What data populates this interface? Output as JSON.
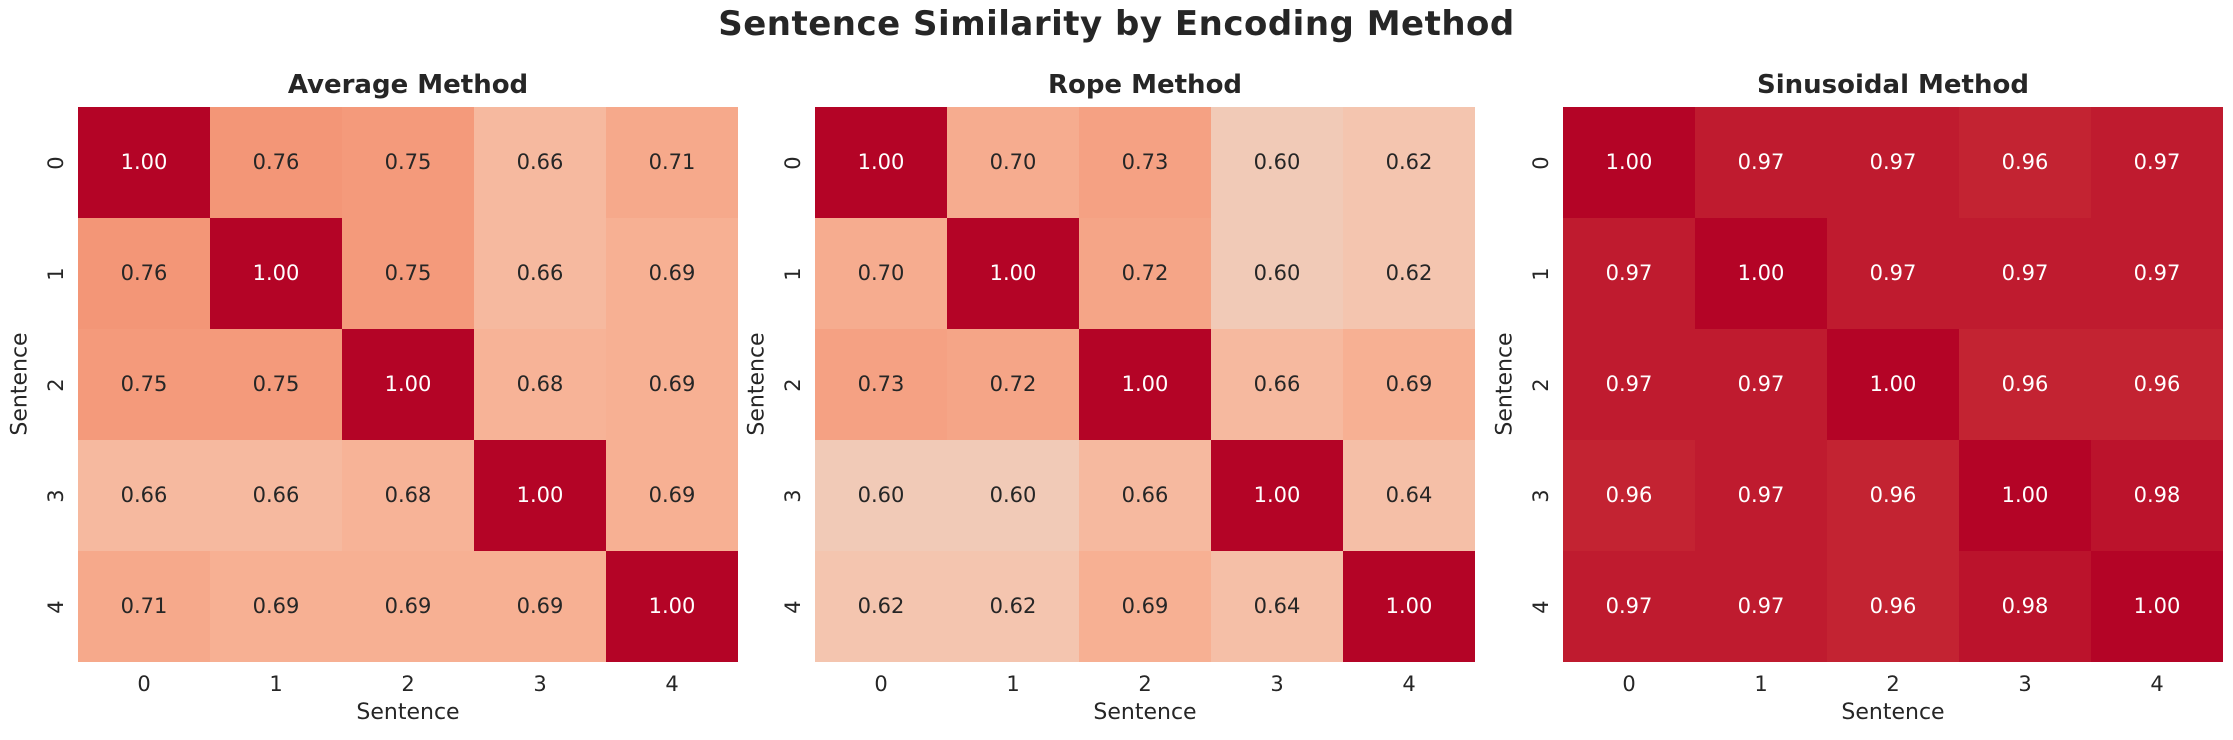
{
  "figure": {
    "title": "Sentence Similarity by Encoding Method",
    "background": "#ffffff",
    "text_color": "#262626"
  },
  "chart_data": [
    {
      "type": "heatmap",
      "title": "Average Method",
      "xlabel": "Sentence",
      "ylabel": "Sentence",
      "x_tick_labels": [
        "0",
        "1",
        "2",
        "3",
        "4"
      ],
      "y_tick_labels": [
        "0",
        "1",
        "2",
        "3",
        "4"
      ],
      "colormap": "coolwarm",
      "vmin": 0,
      "vmax": 1,
      "annot_format": "2-decimals",
      "values": [
        [
          1.0,
          0.76,
          0.75,
          0.66,
          0.71
        ],
        [
          0.76,
          1.0,
          0.75,
          0.66,
          0.69
        ],
        [
          0.75,
          0.75,
          1.0,
          0.68,
          0.69
        ],
        [
          0.66,
          0.66,
          0.68,
          1.0,
          0.69
        ],
        [
          0.71,
          0.69,
          0.69,
          0.69,
          1.0
        ]
      ]
    },
    {
      "type": "heatmap",
      "title": "Rope Method",
      "xlabel": "Sentence",
      "ylabel": "Sentence",
      "x_tick_labels": [
        "0",
        "1",
        "2",
        "3",
        "4"
      ],
      "y_tick_labels": [
        "0",
        "1",
        "2",
        "3",
        "4"
      ],
      "colormap": "coolwarm",
      "vmin": 0,
      "vmax": 1,
      "annot_format": "2-decimals",
      "values": [
        [
          1.0,
          0.7,
          0.73,
          0.6,
          0.62
        ],
        [
          0.7,
          1.0,
          0.72,
          0.6,
          0.62
        ],
        [
          0.73,
          0.72,
          1.0,
          0.66,
          0.69
        ],
        [
          0.6,
          0.6,
          0.66,
          1.0,
          0.64
        ],
        [
          0.62,
          0.62,
          0.69,
          0.64,
          1.0
        ]
      ]
    },
    {
      "type": "heatmap",
      "title": "Sinusoidal Method",
      "xlabel": "Sentence",
      "ylabel": "Sentence",
      "x_tick_labels": [
        "0",
        "1",
        "2",
        "3",
        "4"
      ],
      "y_tick_labels": [
        "0",
        "1",
        "2",
        "3",
        "4"
      ],
      "colormap": "coolwarm",
      "vmin": 0,
      "vmax": 1,
      "annot_format": "2-decimals",
      "values": [
        [
          1.0,
          0.97,
          0.97,
          0.96,
          0.97
        ],
        [
          0.97,
          1.0,
          0.97,
          0.97,
          0.97
        ],
        [
          0.97,
          0.97,
          1.0,
          0.96,
          0.96
        ],
        [
          0.96,
          0.97,
          0.96,
          1.0,
          0.98
        ],
        [
          0.97,
          0.97,
          0.96,
          0.98,
          1.0
        ]
      ]
    }
  ],
  "colormap_stops": [
    {
      "t": 0.5,
      "rgb": [
        221,
        221,
        219
      ]
    },
    {
      "t": 0.5625,
      "rgb": [
        236,
        211,
        197
      ]
    },
    {
      "t": 0.625,
      "rgb": [
        245,
        196,
        173
      ]
    },
    {
      "t": 0.6875,
      "rgb": [
        247,
        177,
        148
      ]
    },
    {
      "t": 0.75,
      "rgb": [
        244,
        154,
        123
      ]
    },
    {
      "t": 0.8125,
      "rgb": [
        236,
        127,
        99
      ]
    },
    {
      "t": 0.875,
      "rgb": [
        222,
        96,
        77
      ]
    },
    {
      "t": 0.9375,
      "rgb": [
        203,
        52,
        56
      ]
    },
    {
      "t": 1.0,
      "rgb": [
        180,
        4,
        38
      ]
    }
  ],
  "colors": {
    "max_cell": "#b40426",
    "min_cell_average": "#f1cab7",
    "annot_dark": "#262626",
    "annot_light": "#ffffff",
    "background": "#ffffff"
  }
}
